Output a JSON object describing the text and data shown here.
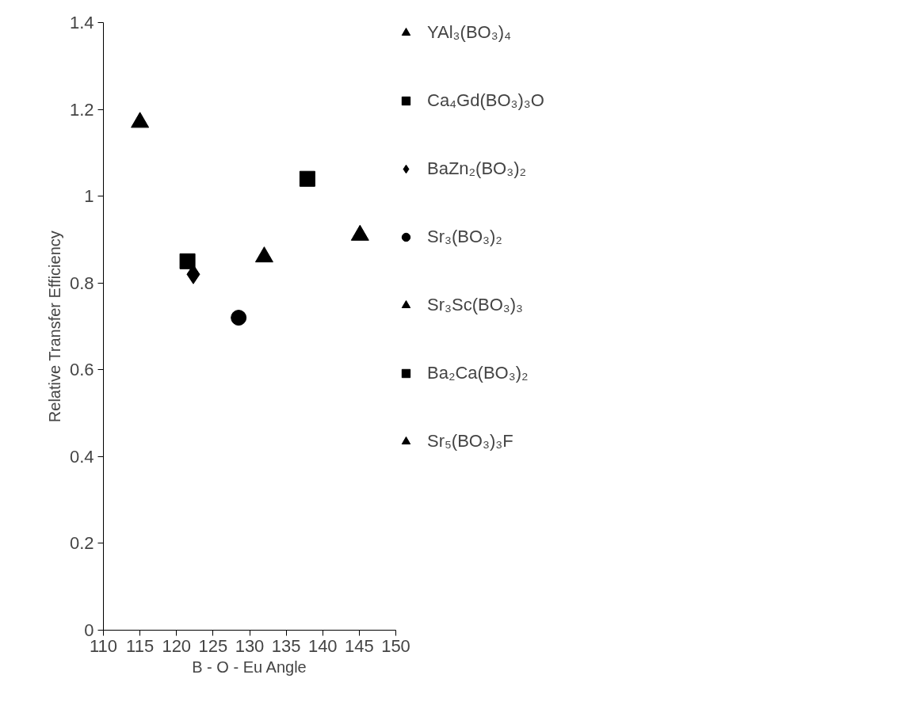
{
  "chart_data": {
    "type": "scatter",
    "xlabel": "B - O - Eu Angle",
    "ylabel": "Relative Transfer Efficiency",
    "xlim": [
      110,
      150
    ],
    "xticks": [
      110,
      115,
      120,
      125,
      130,
      135,
      140,
      145,
      150
    ],
    "ylim": [
      0,
      1.4
    ],
    "yticks": [
      0,
      0.2,
      0.4,
      0.6,
      0.8,
      1,
      1.2,
      1.4
    ],
    "grid": false,
    "legend": "right",
    "series": [
      {
        "name": "YAl₃(BO₃)₄",
        "color": "#000000",
        "marker": "triangle",
        "x": [
          115.0
        ],
        "values": [
          1.17
        ]
      },
      {
        "name": "Ca₄Gd(BO₃)₃O",
        "color": "#000000",
        "marker": "square",
        "x": [
          121.5
        ],
        "values": [
          0.85
        ]
      },
      {
        "name": "BaZn₂(BO₃)₂",
        "color": "#000000",
        "marker": "diamond",
        "x": [
          122.3
        ],
        "values": [
          0.82
        ]
      },
      {
        "name": "Sr₃(BO₃)₂",
        "color": "#000000",
        "marker": "circle",
        "x": [
          128.5
        ],
        "values": [
          0.72
        ]
      },
      {
        "name": "Sr₃Sc(BO₃)₃",
        "color": "#000000",
        "marker": "triangle",
        "x": [
          132.0
        ],
        "values": [
          0.86
        ]
      },
      {
        "name": "Ba₂Ca(BO₃)₂",
        "color": "#000000",
        "marker": "square",
        "x": [
          137.9
        ],
        "values": [
          1.04
        ]
      },
      {
        "name": "Sr₅(BO₃)₃F",
        "color": "#000000",
        "marker": "triangle",
        "x": [
          145.1
        ],
        "values": [
          0.91
        ]
      }
    ]
  }
}
